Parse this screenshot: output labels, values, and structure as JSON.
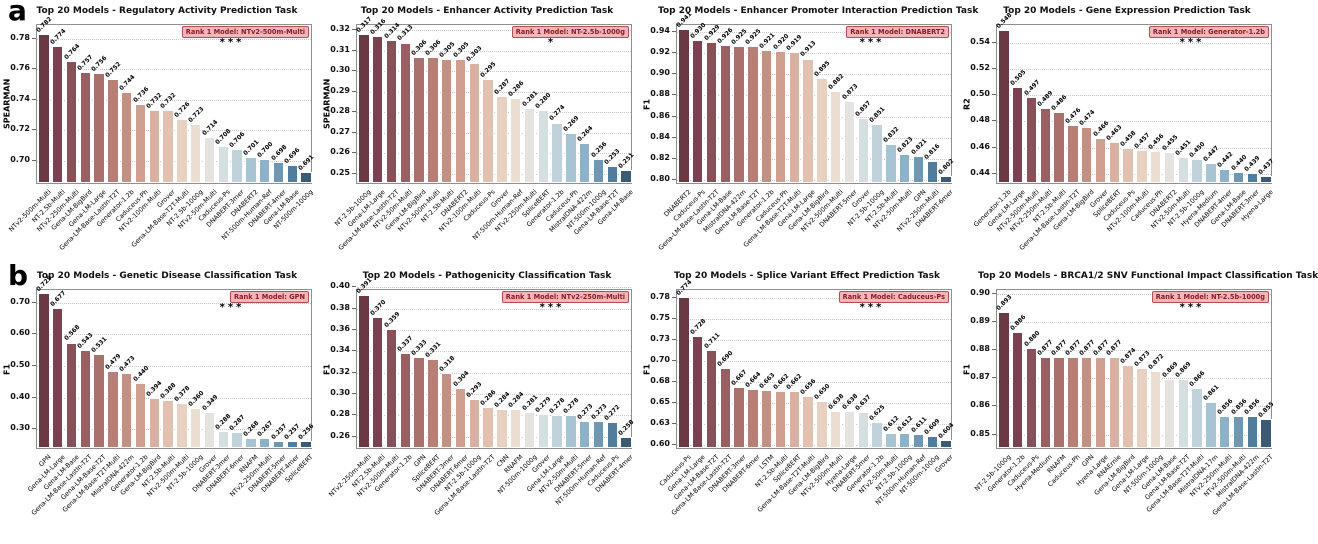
{
  "figure": {
    "row_labels": [
      "a",
      "b"
    ]
  },
  "style": {
    "background": "#ffffff",
    "badge_bg": "#f4b6b8",
    "badge_border": "#b84d4d",
    "badge_text": "#8b1c20",
    "grid_color": "#c9c9c9",
    "spine_color": "#8f8f8f",
    "palette": [
      "#6b3944",
      "#7a4150",
      "#8b4f5a",
      "#9a5f63",
      "#a9706c",
      "#b78076",
      "#c39082",
      "#cfa090",
      "#d9b1a0",
      "#e2c1b0",
      "#e9d1c2",
      "#ecddd1",
      "#e4e3df",
      "#d5dee1",
      "#c0d3db",
      "#a8c4d2",
      "#8cb2c7",
      "#6d98b5",
      "#517c9c",
      "#3a5a76"
    ]
  },
  "chart_data": [
    {
      "type": "bar",
      "id": "a1",
      "row": 0,
      "col": 0,
      "title": "Top 20 Models - Regulatory Activity Prediction Task",
      "ylabel": "SPEARMAN",
      "rank1_label": "Rank 1 Model: NTv2-500m-Multi",
      "significance": "***",
      "ylim": [
        0.684,
        0.789
      ],
      "ytick_values": [
        0.7,
        0.72,
        0.74,
        0.76,
        0.78
      ],
      "ytick_labels": [
        "0.70",
        "0.72",
        "0.74",
        "0.76",
        "0.78"
      ],
      "categories": [
        "NTv2-500m-Multi",
        "NT-2.5b-Multi",
        "NTv2-250m-Multi",
        "Gena-LM-BigBird",
        "Gena-LM-Large",
        "Gena-LM-Base-LastIn-T2T",
        "Generator-1.2b",
        "Caduceus-Ph",
        "NTv2-100m-Multi",
        "Grover",
        "Gena-LM-Base-T2T-Multi",
        "NT-2.5b-1000g",
        "NTv2-50m-Multi",
        "Caduceus-Ps",
        "DNABERT-3mer",
        "DNABERT2",
        "NT-500m-Human-Ref",
        "DNABERT-4mer",
        "Gena-LM-Base",
        "NT-500m-1000g"
      ],
      "values": [
        0.782,
        0.774,
        0.764,
        0.757,
        0.756,
        0.752,
        0.744,
        0.736,
        0.732,
        0.732,
        0.726,
        0.723,
        0.714,
        0.708,
        0.706,
        0.701,
        0.7,
        0.698,
        0.696,
        0.691
      ]
    },
    {
      "type": "bar",
      "id": "a2",
      "row": 0,
      "col": 1,
      "title": "Top 20 Models - Enhancer Activity Prediction Task",
      "ylabel": "SPEARMAN",
      "rank1_label": "Rank 1 Model: NT-2.5b-1000g",
      "significance": "*",
      "ylim": [
        0.2445,
        0.3225
      ],
      "ytick_values": [
        0.25,
        0.26,
        0.27,
        0.28,
        0.29,
        0.3,
        0.31,
        0.32
      ],
      "ytick_labels": [
        "0.25",
        "0.26",
        "0.27",
        "0.28",
        "0.29",
        "0.30",
        "0.31",
        "0.32"
      ],
      "categories": [
        "NT-2.5b-1000g",
        "Gena-LM-Large",
        "Gena-LM-Base-LastIn-T2T",
        "NTv2-50m-Multi",
        "Gena-LM-BigBird",
        "NTv2-500m-Multi",
        "NT-2.5b-Multi",
        "DNABERT2",
        "NTv2-100m-Multi",
        "Caduceus-Ps",
        "Grover",
        "NT-500m-Human-Ref",
        "NTv2-250m-Multi",
        "SpliceBERT",
        "Generator-1.2b",
        "Caduceus-Ph",
        "MistralDNA-422m",
        "NT-500m-1000g",
        "Gena-LM-Base-T2T",
        "Gena-LM-Base"
      ],
      "values": [
        0.317,
        0.316,
        0.314,
        0.313,
        0.306,
        0.306,
        0.305,
        0.305,
        0.303,
        0.295,
        0.287,
        0.286,
        0.281,
        0.28,
        0.274,
        0.269,
        0.264,
        0.256,
        0.253,
        0.251
      ]
    },
    {
      "type": "bar",
      "id": "a3",
      "row": 0,
      "col": 2,
      "title": "Top 20 Models - Enhancer Promoter Interaction Prediction Task",
      "ylabel": "F1",
      "rank1_label": "Rank 1 Model: DNABERT2",
      "significance": "***",
      "ylim": [
        0.7955,
        0.9465
      ],
      "ytick_values": [
        0.8,
        0.82,
        0.84,
        0.86,
        0.88,
        0.9,
        0.92,
        0.94
      ],
      "ytick_labels": [
        "0.80",
        "0.82",
        "0.84",
        "0.86",
        "0.88",
        "0.90",
        "0.92",
        "0.94"
      ],
      "categories": [
        "DNABERT2",
        "Caduceus-Ps",
        "Gena-LM-Base-LastIn-T2T",
        "Gena-LM-Base",
        "MistralDNA-422m",
        "Gena-LM-Base-T2T",
        "Generator-1.2b",
        "Caduceus-Ph",
        "Gena-LM-Base-T2T-Multi",
        "Gena-LM-Large",
        "Gena-LM-BigBird",
        "NTv2-500m-Multi",
        "DNABERT-5mer",
        "Grover",
        "NT-2.5b-1000g",
        "NT-2.5b-Multi",
        "NTv2-50m-Multi",
        "GPN",
        "NTv2-250m-Multi",
        "DNABERT-6mer"
      ],
      "values": [
        0.941,
        0.93,
        0.929,
        0.926,
        0.925,
        0.925,
        0.921,
        0.92,
        0.919,
        0.913,
        0.895,
        0.882,
        0.873,
        0.857,
        0.851,
        0.832,
        0.823,
        0.821,
        0.816,
        0.802
      ]
    },
    {
      "type": "bar",
      "id": "a4",
      "row": 0,
      "col": 3,
      "title": "Top 20 Models - Gene Expression Prediction Task",
      "ylabel": "R2",
      "rank1_label": "Rank 1 Model: Generator-1.2b",
      "significance": "***",
      "ylim": [
        0.4315,
        0.5535
      ],
      "ytick_values": [
        0.44,
        0.46,
        0.48,
        0.5,
        0.52,
        0.54
      ],
      "ytick_labels": [
        "0.44",
        "0.46",
        "0.48",
        "0.50",
        "0.52",
        "0.54"
      ],
      "categories": [
        "Generator-1.2b",
        "Gena-LM-Large",
        "NTv2-500m-Multi",
        "NTv2-250m-Multi",
        "NT-2.5b-Multi",
        "Gena-LM-Base-LastIn-T2T",
        "Gena-LM-BigBird",
        "Grover",
        "SpliceBERT",
        "Caduceus-Ps",
        "NTv2-100m-Multi",
        "Caduceus-Ph",
        "DNABERT2",
        "NTv2-50m-Multi",
        "NT-2.5b-1000g",
        "Hyena-Medium",
        "DNABERT-4mer",
        "Gena-LM-Base",
        "DNABERT-3mer",
        "Hyena-Large"
      ],
      "values": [
        0.548,
        0.505,
        0.497,
        0.489,
        0.486,
        0.476,
        0.474,
        0.466,
        0.463,
        0.458,
        0.457,
        0.456,
        0.455,
        0.451,
        0.45,
        0.447,
        0.442,
        0.44,
        0.439,
        0.437
      ]
    },
    {
      "type": "bar",
      "id": "b1",
      "row": 1,
      "col": 0,
      "title": "Top 20 Models - Genetic Disease Classification Task",
      "ylabel": "F1",
      "rank1_label": "Rank 1 Model: GPN",
      "significance": "***",
      "ylim": [
        0.235,
        0.74
      ],
      "ytick_values": [
        0.3,
        0.4,
        0.5,
        0.6,
        0.7
      ],
      "ytick_labels": [
        "0.30",
        "0.40",
        "0.50",
        "0.60",
        "0.70"
      ],
      "categories": [
        "GPN",
        "Gena-LM-Large",
        "Gena-LM-Base",
        "Gena-LM-Base-LastIn-T2T",
        "Gena-LM-Base-T2T",
        "Gena-LM-Base-T2T-Multi",
        "MistralDNA-422m",
        "Generator-1.2b",
        "Gena-LM-BigBird",
        "NT-2.5b-Multi",
        "NTv2-500m-Multi",
        "NT-2.5b-1000g",
        "Grover",
        "DNABERT-3mer",
        "DNABERT-6mer",
        "RNAFM",
        "NTv2-250m-Multi",
        "DNABERT-5mer",
        "DNABERT-4mer",
        "SpliceBERT"
      ],
      "values": [
        0.725,
        0.677,
        0.568,
        0.543,
        0.531,
        0.479,
        0.473,
        0.44,
        0.394,
        0.388,
        0.378,
        0.36,
        0.349,
        0.288,
        0.287,
        0.268,
        0.267,
        0.257,
        0.257,
        0.256
      ]
    },
    {
      "type": "bar",
      "id": "b2",
      "row": 1,
      "col": 1,
      "title": "Top 20 Models - Pathogenicity Classification Task",
      "ylabel": "F1",
      "rank1_label": "Rank 1 Model: NTv2-250m-Multi",
      "significance": "***",
      "ylim": [
        0.2475,
        0.3975
      ],
      "ytick_values": [
        0.26,
        0.28,
        0.3,
        0.32,
        0.34,
        0.36,
        0.38,
        0.4
      ],
      "ytick_labels": [
        "0.26",
        "0.28",
        "0.30",
        "0.32",
        "0.34",
        "0.36",
        "0.38",
        "0.40"
      ],
      "categories": [
        "NTv2-250m-Multi",
        "NT-2.5b-Multi",
        "NTv2-500m-Multi",
        "Generator-1.2b",
        "GPN",
        "SpliceBERT",
        "DNABERT-3mer",
        "DNABERT-6mer",
        "NT-2.5b-1000g",
        "Gena-LM-Base-LastIn-T2T",
        "CNN",
        "RNAFM",
        "NT-500m-1000g",
        "Grover",
        "Gena-LM-Large",
        "NTv2-50m-Multi",
        "DNABERT-5mer",
        "NT-500m-Human-Ref",
        "Caduceus-Ps",
        "DNABERT-4mer"
      ],
      "values": [
        0.391,
        0.37,
        0.359,
        0.337,
        0.333,
        0.331,
        0.318,
        0.304,
        0.293,
        0.286,
        0.284,
        0.284,
        0.281,
        0.279,
        0.278,
        0.278,
        0.273,
        0.273,
        0.272,
        0.258
      ]
    },
    {
      "type": "bar",
      "id": "b3",
      "row": 1,
      "col": 2,
      "title": "Top 20 Models - Splice Variant Effect Prediction Task",
      "ylabel": "F1",
      "rank1_label": "Rank 1 Model: Caduceus-Ps",
      "significance": "***",
      "ylim": [
        0.5945,
        0.7845
      ],
      "ytick_values": [
        0.6,
        0.625,
        0.65,
        0.675,
        0.7,
        0.725,
        0.75,
        0.775
      ],
      "ytick_labels": [
        "0.60",
        "0.63",
        "0.65",
        "0.68",
        "0.70",
        "0.73",
        "0.75",
        "0.78"
      ],
      "categories": [
        "Caduceus-Ps",
        "Gena-LM-Large",
        "Gena-LM-Base-T2T",
        "Gena-LM-Base-LastIn-T2T",
        "DNABERT-3mer",
        "DNABERT-6mer",
        "LSTM",
        "NT-2.5b-Multi",
        "SpliceBERT",
        "Gena-LM-Base-T2T-Multi",
        "Gena-LM-BigBird",
        "NTv2-500m-Multi",
        "Hyena-Large",
        "DNABERT-5mer",
        "Generator-1.2b",
        "NTv2-50m-Multi",
        "NT-2.5b-1000g",
        "NT-500m-Human-Ref",
        "NT-500m-1000g",
        "Grover"
      ],
      "values": [
        0.774,
        0.728,
        0.711,
        0.69,
        0.667,
        0.664,
        0.663,
        0.662,
        0.662,
        0.656,
        0.65,
        0.638,
        0.638,
        0.637,
        0.625,
        0.612,
        0.612,
        0.611,
        0.609,
        0.604
      ]
    },
    {
      "type": "bar",
      "id": "b4",
      "row": 1,
      "col": 3,
      "title": "Top 20 Models - BRCA1/2 SNV Functional Impact Classification Task",
      "ylabel": "F1",
      "rank1_label": "Rank 1 Model: NT-2.5b-1000g",
      "significance": "***",
      "ylim": [
        0.8445,
        0.9015
      ],
      "ytick_values": [
        0.85,
        0.86,
        0.87,
        0.88,
        0.89,
        0.9
      ],
      "ytick_labels": [
        "0.85",
        "0.86",
        "0.87",
        "0.88",
        "0.89",
        "0.90"
      ],
      "categories": [
        "NT-2.5b-1000g",
        "Generator-1.2b",
        "Caduceus-Ps",
        "Hyena-Medium",
        "RNAFM",
        "Caduceus-Ph",
        "GPN",
        "Hyena-Large",
        "RNAErnie",
        "Gena-LM-BigBird",
        "Gena-LM-Large",
        "NT-500m-1000g",
        "Gena-LM-Base",
        "Gena-LM-Base-T2T",
        "Gena-LM-Base-T2T-Multi",
        "MistralDNA-17m",
        "NTv2-250m-Multi",
        "NTv2-500m-Multi",
        "MistralDNA-422m",
        "Gena-LM-Base-LastIn-T2T"
      ],
      "values": [
        0.893,
        0.886,
        0.88,
        0.877,
        0.877,
        0.877,
        0.877,
        0.877,
        0.877,
        0.874,
        0.873,
        0.872,
        0.869,
        0.869,
        0.866,
        0.861,
        0.856,
        0.856,
        0.856,
        0.855
      ]
    }
  ]
}
